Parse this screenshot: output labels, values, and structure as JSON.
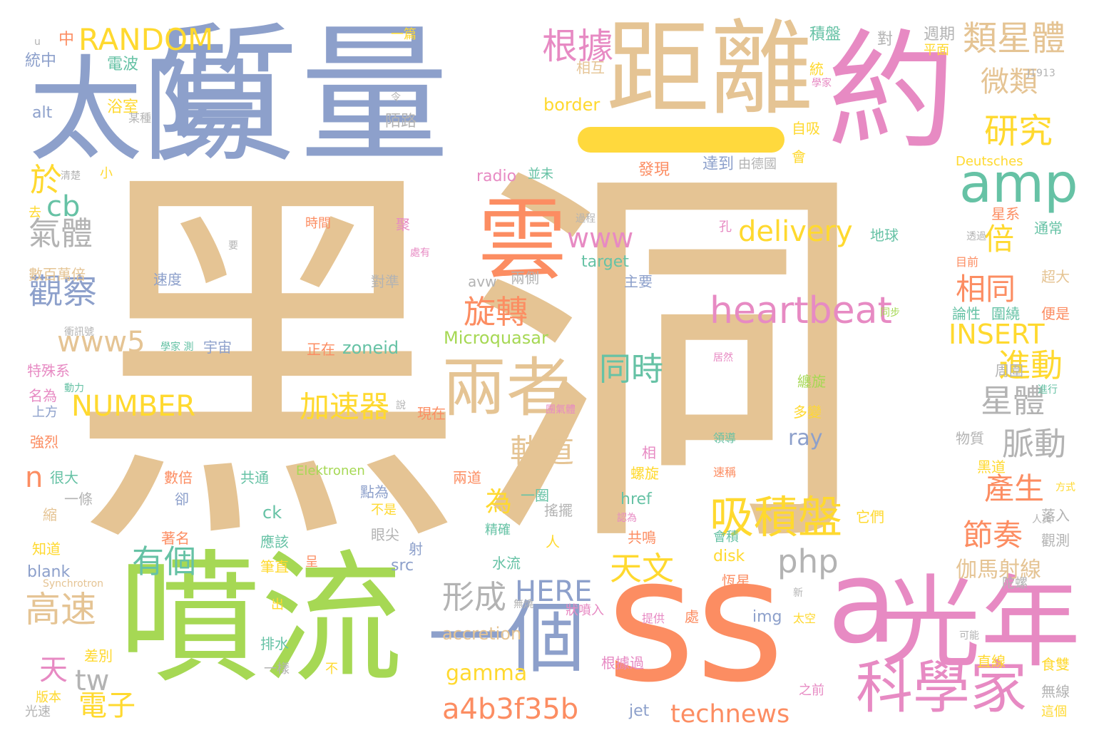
{
  "colors": {
    "tan": "#e5c494",
    "blue": "#8da0cb",
    "orange": "#fc8d62",
    "green": "#a6d854",
    "teal": "#66c2a5",
    "pink": "#e78ac3",
    "yellow": "#ffd92f",
    "gray": "#b3b3b3"
  },
  "words": [
    {
      "text": "黑洞",
      "color": "tan"
    },
    {
      "text": "質量",
      "color": "blue"
    },
    {
      "text": "太陽",
      "color": "blue"
    },
    {
      "text": "距離",
      "color": "tan"
    },
    {
      "text": "約",
      "color": "pink"
    },
    {
      "text": "噴流",
      "color": "green"
    },
    {
      "text": "ss",
      "color": "orange"
    },
    {
      "text": "a",
      "color": "pink"
    },
    {
      "text": "光年",
      "color": "pink"
    },
    {
      "text": "雲",
      "color": "orange"
    },
    {
      "text": "兩者",
      "color": "tan"
    },
    {
      "text": "一個",
      "color": "blue"
    },
    {
      "text": "科學家",
      "color": "pink"
    },
    {
      "text": "amp",
      "color": "teal"
    },
    {
      "text": "heartbeat",
      "color": "pink"
    },
    {
      "text": "吸積盤",
      "color": "yellow"
    },
    {
      "text": "RANDOM",
      "color": "yellow"
    },
    {
      "text": "根據",
      "color": "pink"
    },
    {
      "text": "類星體",
      "color": "tan"
    },
    {
      "text": "研究",
      "color": "yellow"
    },
    {
      "text": "微類",
      "color": "tan"
    },
    {
      "text": "於",
      "color": "yellow"
    },
    {
      "text": "cb",
      "color": "teal"
    },
    {
      "text": "氣體",
      "color": "gray"
    },
    {
      "text": "觀察",
      "color": "blue"
    },
    {
      "text": "www5",
      "color": "tan"
    },
    {
      "text": "NUMBER",
      "color": "yellow"
    },
    {
      "text": "高速",
      "color": "tan"
    },
    {
      "text": "天",
      "color": "pink"
    },
    {
      "text": "tw",
      "color": "gray"
    },
    {
      "text": "電子",
      "color": "yellow"
    },
    {
      "text": "有個",
      "color": "teal"
    },
    {
      "text": "n",
      "color": "orange"
    },
    {
      "text": "www",
      "color": "pink"
    },
    {
      "text": "delivery",
      "color": "yellow"
    },
    {
      "text": "倍",
      "color": "yellow"
    },
    {
      "text": "相同",
      "color": "orange"
    },
    {
      "text": "旋轉",
      "color": "orange"
    },
    {
      "text": "同時",
      "color": "teal"
    },
    {
      "text": "INSERT",
      "color": "yellow"
    },
    {
      "text": "進動",
      "color": "yellow"
    },
    {
      "text": "星體",
      "color": "gray"
    },
    {
      "text": "脈動",
      "color": "gray"
    },
    {
      "text": "軌道",
      "color": "tan"
    },
    {
      "text": "加速器",
      "color": "yellow"
    },
    {
      "text": "為",
      "color": "yellow"
    },
    {
      "text": "產生",
      "color": "orange"
    },
    {
      "text": "節奏",
      "color": "orange"
    },
    {
      "text": "php",
      "color": "gray"
    },
    {
      "text": "天文",
      "color": "yellow"
    },
    {
      "text": "形成",
      "color": "gray"
    },
    {
      "text": "HERE",
      "color": "blue"
    },
    {
      "text": "伽馬射線",
      "color": "tan"
    },
    {
      "text": "a4b3f35b",
      "color": "orange"
    },
    {
      "text": "gamma",
      "color": "yellow"
    },
    {
      "text": "technews",
      "color": "orange"
    },
    {
      "text": "Microquasar",
      "color": "green"
    },
    {
      "text": "zoneid",
      "color": "teal"
    },
    {
      "text": "ray",
      "color": "blue"
    },
    {
      "text": "accretion",
      "color": "tan"
    },
    {
      "text": "target",
      "color": "teal"
    },
    {
      "text": "radio",
      "color": "pink"
    },
    {
      "text": "border",
      "color": "yellow"
    },
    {
      "text": "alt",
      "color": "blue"
    },
    {
      "text": "blank",
      "color": "blue"
    },
    {
      "text": "Synchrotron",
      "color": "tan"
    },
    {
      "text": "Elektronen",
      "color": "green"
    },
    {
      "text": "Deutsches",
      "color": "yellow"
    },
    {
      "text": "J1913",
      "color": "gray"
    },
    {
      "text": "img",
      "color": "blue"
    },
    {
      "text": "src",
      "color": "blue"
    },
    {
      "text": "href",
      "color": "teal"
    },
    {
      "text": "ck",
      "color": "teal"
    },
    {
      "text": "jet",
      "color": "blue"
    },
    {
      "text": "disk",
      "color": "yellow"
    },
    {
      "text": "avw",
      "color": "gray"
    },
    {
      "text": "中",
      "color": "orange"
    },
    {
      "text": "u",
      "color": "gray"
    },
    {
      "text": "統中",
      "color": "blue"
    },
    {
      "text": "電波",
      "color": "teal"
    },
    {
      "text": "浴室",
      "color": "yellow"
    },
    {
      "text": "陌路",
      "color": "gray"
    },
    {
      "text": "一篇",
      "color": "yellow"
    },
    {
      "text": "積盤",
      "color": "teal"
    },
    {
      "text": "對",
      "color": "gray"
    },
    {
      "text": "週期",
      "color": "gray"
    },
    {
      "text": "平面",
      "color": "yellow"
    },
    {
      "text": "相互",
      "color": "tan"
    },
    {
      "text": "統",
      "color": "yellow"
    },
    {
      "text": "自吸",
      "color": "yellow"
    },
    {
      "text": "達到",
      "color": "blue"
    },
    {
      "text": "由德國",
      "color": "gray"
    },
    {
      "text": "發現",
      "color": "orange"
    },
    {
      "text": "去",
      "color": "yellow"
    },
    {
      "text": "小",
      "color": "yellow"
    },
    {
      "text": "清楚",
      "color": "gray"
    },
    {
      "text": "並未",
      "color": "teal"
    },
    {
      "text": "會",
      "color": "yellow"
    },
    {
      "text": "星系",
      "color": "orange"
    },
    {
      "text": "數百萬倍",
      "color": "tan"
    },
    {
      "text": "速度",
      "color": "blue"
    },
    {
      "text": "孔",
      "color": "pink"
    },
    {
      "text": "地球",
      "color": "teal"
    },
    {
      "text": "通常",
      "color": "teal"
    },
    {
      "text": "目前",
      "color": "orange"
    },
    {
      "text": "超大",
      "color": "tan"
    },
    {
      "text": "主要",
      "color": "blue"
    },
    {
      "text": "兩側",
      "color": "gray"
    },
    {
      "text": "對準",
      "color": "gray"
    },
    {
      "text": "時間",
      "color": "orange"
    },
    {
      "text": "聚",
      "color": "pink"
    },
    {
      "text": "圍繞",
      "color": "teal"
    },
    {
      "text": "論性",
      "color": "teal"
    },
    {
      "text": "便是",
      "color": "orange"
    },
    {
      "text": "特殊系",
      "color": "pink"
    },
    {
      "text": "宇宙",
      "color": "blue"
    },
    {
      "text": "正在",
      "color": "orange"
    },
    {
      "text": "名為",
      "color": "pink"
    },
    {
      "text": "上方",
      "color": "blue"
    },
    {
      "text": "現在",
      "color": "orange"
    },
    {
      "text": "纏旋",
      "color": "green"
    },
    {
      "text": "多變",
      "color": "yellow"
    },
    {
      "text": "周圍",
      "color": "gray"
    },
    {
      "text": "強烈",
      "color": "orange"
    },
    {
      "text": "很大",
      "color": "teal"
    },
    {
      "text": "共通",
      "color": "teal"
    },
    {
      "text": "數倍",
      "color": "orange"
    },
    {
      "text": "兩道",
      "color": "orange"
    },
    {
      "text": "物質",
      "color": "gray"
    },
    {
      "text": "黑道",
      "color": "yellow"
    },
    {
      "text": "點為",
      "color": "blue"
    },
    {
      "text": "一圈",
      "color": "teal"
    },
    {
      "text": "落入",
      "color": "gray"
    },
    {
      "text": "不是",
      "color": "yellow"
    },
    {
      "text": "著名",
      "color": "orange"
    },
    {
      "text": "卻",
      "color": "blue"
    },
    {
      "text": "一條",
      "color": "gray"
    },
    {
      "text": "搖擺",
      "color": "gray"
    },
    {
      "text": "它們",
      "color": "yellow"
    },
    {
      "text": "精確",
      "color": "teal"
    },
    {
      "text": "應該",
      "color": "teal"
    },
    {
      "text": "眼尖",
      "color": "gray"
    },
    {
      "text": "知道",
      "color": "yellow"
    },
    {
      "text": "共鳴",
      "color": "orange"
    },
    {
      "text": "觀測",
      "color": "gray"
    },
    {
      "text": "射",
      "color": "blue"
    },
    {
      "text": "筆直",
      "color": "yellow"
    },
    {
      "text": "水流",
      "color": "teal"
    },
    {
      "text": "出",
      "color": "yellow"
    },
    {
      "text": "處",
      "color": "orange"
    },
    {
      "text": "恆星",
      "color": "orange"
    },
    {
      "text": "差別",
      "color": "yellow"
    },
    {
      "text": "排水",
      "color": "teal"
    },
    {
      "text": "直線",
      "color": "yellow"
    },
    {
      "text": "食雙",
      "color": "yellow"
    },
    {
      "text": "根據過",
      "color": "pink"
    },
    {
      "text": "無線",
      "color": "gray"
    },
    {
      "text": "版本",
      "color": "yellow"
    },
    {
      "text": "一樣",
      "color": "gray"
    },
    {
      "text": "之前",
      "color": "pink"
    },
    {
      "text": "光速",
      "color": "gray"
    },
    {
      "text": "這個",
      "color": "yellow"
    },
    {
      "text": "太空",
      "color": "yellow"
    },
    {
      "text": "陀螺",
      "color": "gray"
    },
    {
      "text": "縮",
      "color": "tan"
    },
    {
      "text": "螺旋",
      "color": "yellow"
    },
    {
      "text": "相",
      "color": "pink"
    },
    {
      "text": "人",
      "color": "yellow"
    },
    {
      "text": "不",
      "color": "yellow"
    },
    {
      "text": "呈",
      "color": "orange"
    },
    {
      "text": "新",
      "color": "gray"
    },
    {
      "text": "可能",
      "color": "gray"
    },
    {
      "text": "提供",
      "color": "pink"
    },
    {
      "text": "狀噴入",
      "color": "pink"
    },
    {
      "text": "會積",
      "color": "teal"
    },
    {
      "text": "領導",
      "color": "teal"
    },
    {
      "text": "速稱",
      "color": "orange"
    },
    {
      "text": "居然",
      "color": "pink"
    },
    {
      "text": "同步",
      "color": "green"
    },
    {
      "text": "過程",
      "color": "gray"
    },
    {
      "text": "處有",
      "color": "pink"
    },
    {
      "text": "要",
      "color": "gray"
    },
    {
      "text": "某種",
      "color": "gray"
    },
    {
      "text": "令",
      "color": "gray"
    },
    {
      "text": "學家",
      "color": "pink"
    },
    {
      "text": "透過",
      "color": "gray"
    },
    {
      "text": "方式",
      "color": "yellow"
    },
    {
      "text": "人員",
      "color": "gray"
    },
    {
      "text": "進行",
      "color": "teal"
    },
    {
      "text": "認為",
      "color": "pink"
    },
    {
      "text": "動力",
      "color": "teal"
    },
    {
      "text": "學家 測",
      "color": "teal"
    },
    {
      "text": "衝訊號",
      "color": "gray"
    },
    {
      "text": "團氣體",
      "color": "pink"
    },
    {
      "text": "說",
      "color": "gray"
    },
    {
      "text": "無燒",
      "color": "gray"
    },
    {
      "text": "Jian",
      "color": "gray"
    },
    {
      "text": "顯",
      "color": "pink"
    },
    {
      "text": "貴率",
      "color": "pink"
    }
  ]
}
